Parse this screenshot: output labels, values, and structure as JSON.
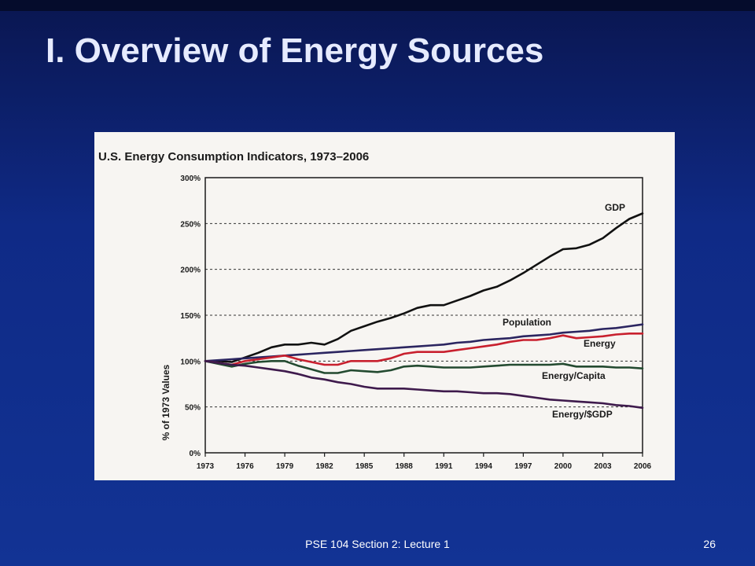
{
  "slide": {
    "title": "I. Overview of Energy Sources",
    "footer": "PSE 104 Section 2: Lecture 1",
    "page_number": "26"
  },
  "colors": {
    "background": "#0f2a86",
    "title_text": "#e6ebff",
    "gdp": "#111111",
    "population": "#2b2560",
    "energy": "#c8202e",
    "energy_capita": "#234a30",
    "energy_gdp": "#3e1a4c"
  },
  "chart_data": {
    "type": "line",
    "title": "U.S. Energy Consumption Indicators, 1973–2006",
    "xlabel": "",
    "ylabel": "% of 1973 Values",
    "x": [
      1973,
      1974,
      1975,
      1976,
      1977,
      1978,
      1979,
      1980,
      1981,
      1982,
      1983,
      1984,
      1985,
      1986,
      1987,
      1988,
      1989,
      1990,
      1991,
      1992,
      1993,
      1994,
      1995,
      1996,
      1997,
      1998,
      1999,
      2000,
      2001,
      2002,
      2003,
      2004,
      2005,
      2006
    ],
    "xticks": [
      1973,
      1976,
      1979,
      1982,
      1985,
      1988,
      1991,
      1994,
      1997,
      2000,
      2003,
      2006
    ],
    "xtick_labels": [
      "1973",
      "1976",
      "1979",
      "1982",
      "1985",
      "1988",
      "1991",
      "1994",
      "1997",
      "2000",
      "2003",
      "2006"
    ],
    "yticks": [
      0,
      50,
      100,
      150,
      200,
      250,
      300
    ],
    "ytick_labels": [
      "0%",
      "50%",
      "100%",
      "150%",
      "200%",
      "250%",
      "300%"
    ],
    "xlim": [
      1973,
      2006
    ],
    "ylim": [
      0,
      300
    ],
    "grid": "dashed horizontal",
    "series": [
      {
        "name": "GDP",
        "color": "#111111",
        "values": [
          100,
          100,
          99,
          104,
          109,
          115,
          118,
          118,
          120,
          118,
          124,
          133,
          138,
          143,
          147,
          152,
          158,
          161,
          161,
          166,
          171,
          177,
          181,
          188,
          196,
          205,
          214,
          222,
          223,
          227,
          234,
          245,
          255,
          261
        ]
      },
      {
        "name": "Population",
        "color": "#2b2560",
        "values": [
          100,
          101,
          102,
          103,
          104,
          105,
          106,
          107,
          108,
          109,
          110,
          111,
          112,
          113,
          114,
          115,
          116,
          117,
          118,
          120,
          121,
          123,
          124,
          125,
          127,
          128,
          129,
          131,
          132,
          133,
          135,
          136,
          138,
          140
        ]
      },
      {
        "name": "Energy",
        "color": "#c8202e",
        "values": [
          100,
          98,
          96,
          100,
          102,
          104,
          106,
          102,
          99,
          96,
          96,
          100,
          100,
          100,
          103,
          108,
          110,
          110,
          110,
          112,
          114,
          116,
          118,
          121,
          123,
          123,
          125,
          128,
          125,
          126,
          127,
          129,
          130,
          130
        ]
      },
      {
        "name": "Energy/Capita",
        "color": "#234a30",
        "values": [
          100,
          97,
          94,
          97,
          99,
          100,
          100,
          95,
          91,
          87,
          87,
          90,
          89,
          88,
          90,
          94,
          95,
          94,
          93,
          93,
          93,
          94,
          95,
          96,
          96,
          96,
          96,
          97,
          94,
          94,
          94,
          93,
          93,
          92
        ]
      },
      {
        "name": "Energy/$GDP",
        "color": "#3e1a4c",
        "values": [
          100,
          98,
          96,
          95,
          93,
          91,
          89,
          86,
          82,
          80,
          77,
          75,
          72,
          70,
          70,
          70,
          69,
          68,
          67,
          67,
          66,
          65,
          65,
          64,
          62,
          60,
          58,
          57,
          56,
          55,
          54,
          52,
          51,
          49
        ]
      }
    ]
  }
}
